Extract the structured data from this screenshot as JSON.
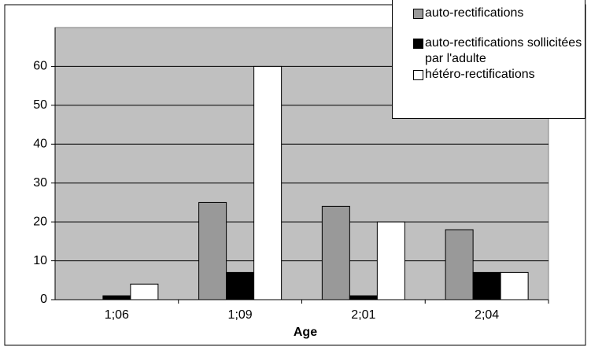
{
  "chart_data": {
    "type": "bar",
    "x_label": "Age",
    "categories": [
      "1;06",
      "1;09",
      "2;01",
      "2;04"
    ],
    "series": [
      {
        "name": "auto-rectifications",
        "color": "#999999",
        "values": [
          0,
          25,
          24,
          18
        ]
      },
      {
        "name": "auto-rectifications sollicitées par l'adulte",
        "color": "#000000",
        "values": [
          1,
          7,
          1,
          7
        ]
      },
      {
        "name": "hétéro-rectifications",
        "color": "#ffffff",
        "values": [
          4,
          60,
          20,
          7
        ]
      }
    ],
    "ylim": [
      0,
      70
    ],
    "yticks": [
      0,
      10,
      20,
      30,
      40,
      50,
      60
    ],
    "grid": true,
    "plot_background": "#c0c0c0",
    "legend": "top-right"
  }
}
